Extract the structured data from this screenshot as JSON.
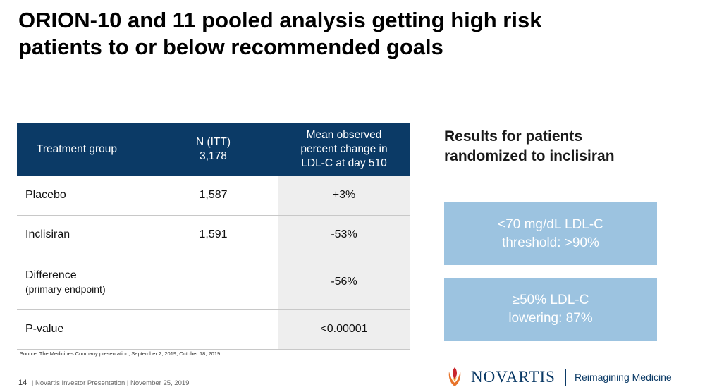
{
  "slide": {
    "title_line1": "ORION-10 and 11 pooled analysis getting high risk",
    "title_line2": "patients to or below recommended goals"
  },
  "table": {
    "headers": {
      "group": "Treatment group",
      "n_label": "N (ITT)",
      "n_value": "3,178",
      "change_line1": "Mean observed",
      "change_line2": "percent change in",
      "change_line3": "LDL-C at day 510"
    },
    "rows": [
      {
        "group": "Placebo",
        "sub": "",
        "n": "1,587",
        "change": "+3%"
      },
      {
        "group": "Inclisiran",
        "sub": "",
        "n": "1,591",
        "change": "-53%"
      },
      {
        "group": "Difference",
        "sub": "(primary endpoint)",
        "n": "",
        "change": "-56%"
      },
      {
        "group": "P-value",
        "sub": "",
        "n": "",
        "change": "<0.00001"
      }
    ]
  },
  "source": "Source: The Medicines Company presentation, September 2, 2019; October 18, 2019",
  "results": {
    "title_line1": "Results for patients",
    "title_line2": "randomized to inclisiran",
    "boxes": [
      {
        "line1": "<70 mg/dL LDL-C",
        "line2": "threshold: >90%"
      },
      {
        "line1": "≥50% LDL-C",
        "line2": "lowering: 87%"
      }
    ]
  },
  "footer": {
    "page_number": "14",
    "text": "| Novartis Investor Presentation   | November 25, 2019"
  },
  "brand": {
    "logo_icon": "novartis-flame-icon",
    "name": "NOVARTIS",
    "tagline": "Reimagining Medicine",
    "colors": {
      "navy": "#0b3a66",
      "logo_orange": "#e8742b",
      "box_blue": "#9cc3e0"
    }
  }
}
